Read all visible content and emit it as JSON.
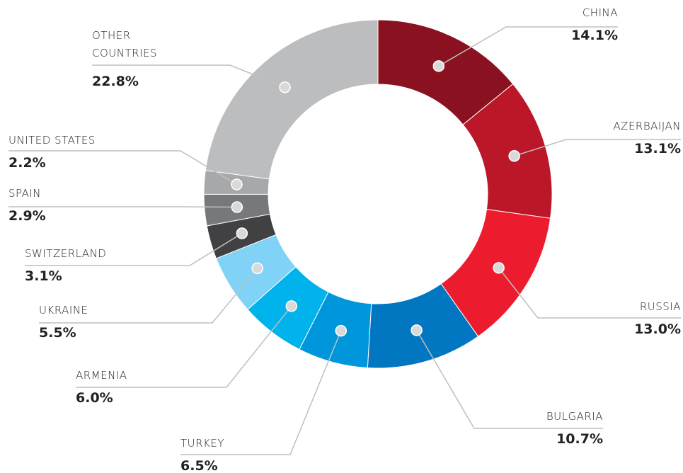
{
  "chart_data": {
    "type": "donut",
    "categories": [
      "CHINA",
      "AZERBAIJAN",
      "RUSSIA",
      "BULGARIA",
      "TURKEY",
      "ARMENIA",
      "UKRAINE",
      "SWITZERLAND",
      "SPAIN",
      "UNITED STATES",
      "OTHER COUNTRIES"
    ],
    "values": [
      14.1,
      13.1,
      13.0,
      10.7,
      6.5,
      6.0,
      5.5,
      3.1,
      2.9,
      2.2,
      22.8
    ],
    "value_labels": [
      "14.1%",
      "13.1%",
      "13.0%",
      "10.7%",
      "6.5%",
      "6.0%",
      "5.5%",
      "3.1%",
      "2.9%",
      "2.2%",
      "22.8%"
    ],
    "colors": [
      "#8a111f",
      "#bb1729",
      "#ec1c2e",
      "#0077c0",
      "#0096dc",
      "#00b3ec",
      "#80d3f7",
      "#414143",
      "#77787b",
      "#a7a8aa",
      "#bcbdbf"
    ]
  }
}
